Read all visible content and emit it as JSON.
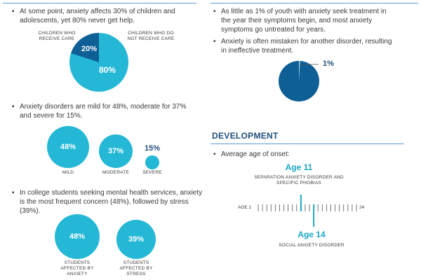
{
  "left": {
    "section1": {
      "text": "At some point, anxiety affects 30% of children and adolescents, yet 80% never get help.",
      "pie": {
        "label_receive": "CHILDREN WHO RECEIVE CARE",
        "label_not_receive": "CHILDREN WHO DO NOT RECEIVE CARE",
        "receive_value": "20%",
        "not_receive_value": "80%",
        "receive_fraction": 0.2
      }
    },
    "section2": {
      "text": "Anxiety disorders are mild for 48%, moderate for 37% and severe for 15%.",
      "items": [
        {
          "value": "48%",
          "label": "MILD"
        },
        {
          "value": "37%",
          "label": "MODERATE"
        },
        {
          "value": "15%",
          "label": "SEVERE"
        }
      ]
    },
    "section3": {
      "text": "In college students seeking mental health services, anxiety is the most frequent concern (48%), followed by stress (39%).",
      "items": [
        {
          "value": "48%",
          "label": "STUDENTS AFFECTED BY ANXIETY"
        },
        {
          "value": "39%",
          "label": "STUDENTS AFFECTED BY STRESS"
        }
      ]
    }
  },
  "right": {
    "bullets": [
      "As little as 1% of youth with anxiety seek treatment in the year their symptoms begin, and most anxiety symptoms go untreated for years.",
      "Anxiety is often mistaken for another disorder, resulting in ineffective treatment."
    ],
    "pie": {
      "value": "1%",
      "fraction": 0.01
    },
    "development": {
      "heading": "DEVELOPMENT",
      "bullet": "Average age of onset:",
      "age_a": "Age 11",
      "age_a_label": "SEPARATION ANXIETY DISORDER AND SPECIFIC PHOBIAS",
      "age_b": "Age 14",
      "age_b_label": "SOCIAL ANXIETY DISORDER",
      "axis_start": "AGE 1",
      "axis_end": "24"
    }
  },
  "colors": {
    "dark_blue": "#0e5f96",
    "cyan": "#25b8d6",
    "rule": "#5a9bd5"
  }
}
